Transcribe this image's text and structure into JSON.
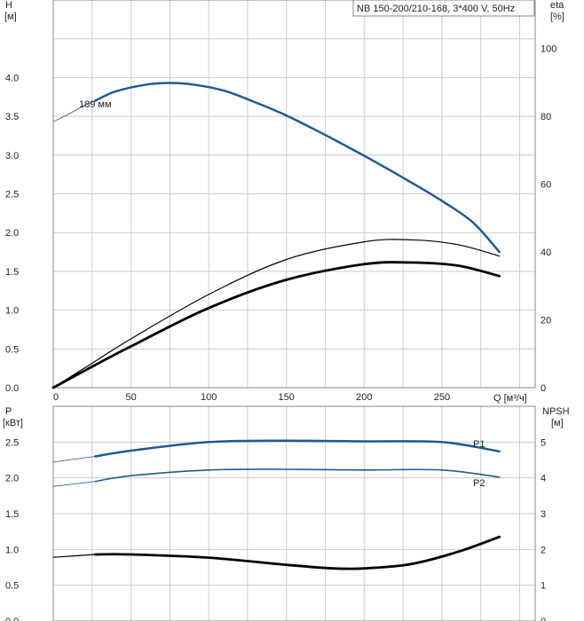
{
  "title": "NB 150-200/210-168, 3*400 V, 50Hz",
  "colors": {
    "blue": "#1f5a96",
    "black": "#000000",
    "grid": "#cccccc"
  },
  "chart_data": [
    {
      "type": "line",
      "name": "upper",
      "xlabel": "Q [м³/ч]",
      "ylabel_left_1": "H",
      "ylabel_left_2": "[м]",
      "ylabel_right_1": "eta",
      "ylabel_right_2": "[%]",
      "xlim": [
        0,
        310
      ],
      "ylim_left": [
        0,
        5
      ],
      "ylim_right": [
        0,
        114.3
      ],
      "xticks": [
        0,
        50,
        100,
        150,
        200,
        250
      ],
      "xtick_labels": [
        "0",
        "50",
        "100",
        "150",
        "200",
        "250"
      ],
      "yticks_left": [
        0,
        0.5,
        1.0,
        1.5,
        2.0,
        2.5,
        3.0,
        3.5,
        4.0
      ],
      "ytick_labels_left": [
        "0.0",
        "0.5",
        "1.0",
        "1.5",
        "2.0",
        "2.5",
        "3.0",
        "3.5",
        "4.0"
      ],
      "yticks_right": [
        0,
        20,
        40,
        60,
        80,
        100
      ],
      "ytick_labels_right": [
        "0",
        "20",
        "40",
        "60",
        "80",
        "100"
      ],
      "grid": true,
      "annotation": "189 мм",
      "series": [
        {
          "key": "H",
          "axis": "left",
          "style": "blue-thick",
          "x": [
            27,
            40,
            60,
            75,
            90,
            110,
            130,
            150,
            170,
            190,
            210,
            230,
            250,
            270,
            287
          ],
          "y": [
            3.7,
            3.82,
            3.91,
            3.93,
            3.91,
            3.83,
            3.68,
            3.51,
            3.31,
            3.1,
            2.88,
            2.65,
            2.41,
            2.13,
            1.75
          ]
        },
        {
          "key": "H_ext",
          "axis": "left",
          "style": "blue-thin",
          "x": [
            0,
            10,
            20,
            27
          ],
          "y": [
            3.43,
            3.53,
            3.64,
            3.7
          ]
        },
        {
          "key": "eta_thin",
          "axis": "right",
          "style": "black-thin",
          "x": [
            0,
            27,
            50,
            100,
            150,
            200,
            230,
            260,
            287
          ],
          "y": [
            0,
            7.8,
            14.4,
            27.5,
            37.8,
            43.0,
            43.6,
            42.2,
            38.8
          ]
        },
        {
          "key": "eta",
          "axis": "right",
          "style": "black-thick",
          "x": [
            0,
            27,
            50,
            100,
            150,
            200,
            230,
            260,
            287
          ],
          "y": [
            0,
            6.7,
            12.2,
            23.5,
            31.8,
            36.4,
            36.9,
            36.0,
            32.9
          ]
        }
      ]
    },
    {
      "type": "line",
      "name": "lower",
      "ylabel_left_1": "P",
      "ylabel_left_2": "[кВт]",
      "ylabel_right_1": "NPSH",
      "ylabel_right_2": "[м]",
      "xlim": [
        0,
        310
      ],
      "ylim_left": [
        0,
        3
      ],
      "ylim_right": [
        0,
        6
      ],
      "xticks": [
        0,
        50,
        100,
        150,
        200,
        250
      ],
      "yticks_left": [
        0,
        0.5,
        1.0,
        1.5,
        2.0,
        2.5
      ],
      "ytick_labels_left": [
        "0.0",
        "0.5",
        "1.0",
        "1.5",
        "2.0",
        "2.5"
      ],
      "yticks_right": [
        0,
        1,
        2,
        3,
        4,
        5
      ],
      "ytick_labels_right": [
        "0",
        "1",
        "2",
        "3",
        "4",
        "5"
      ],
      "grid": true,
      "series": [
        {
          "key": "P1",
          "name": "P1",
          "axis": "left",
          "style": "blue-thick",
          "x": [
            27,
            50,
            100,
            150,
            200,
            250,
            287
          ],
          "y": [
            2.3,
            2.38,
            2.5,
            2.52,
            2.51,
            2.5,
            2.37
          ]
        },
        {
          "key": "P1_ext",
          "axis": "left",
          "style": "blue-thin",
          "x": [
            0,
            27
          ],
          "y": [
            2.22,
            2.3
          ]
        },
        {
          "key": "P2",
          "name": "P2",
          "axis": "left",
          "style": "blue-medium",
          "x": [
            27,
            50,
            100,
            150,
            200,
            250,
            287
          ],
          "y": [
            1.95,
            2.03,
            2.11,
            2.12,
            2.11,
            2.11,
            2.01
          ]
        },
        {
          "key": "P2_ext",
          "axis": "left",
          "style": "blue-thin",
          "x": [
            0,
            27
          ],
          "y": [
            1.88,
            1.95
          ]
        },
        {
          "key": "NPSH",
          "axis": "right",
          "style": "black-thick",
          "x": [
            27,
            50,
            100,
            150,
            180,
            200,
            230,
            260,
            287
          ],
          "y": [
            1.86,
            1.86,
            1.77,
            1.57,
            1.47,
            1.47,
            1.59,
            1.93,
            2.35
          ]
        },
        {
          "key": "NPSH_ext",
          "axis": "right",
          "style": "black-thin",
          "x": [
            0,
            27
          ],
          "y": [
            1.78,
            1.86
          ]
        }
      ]
    }
  ]
}
